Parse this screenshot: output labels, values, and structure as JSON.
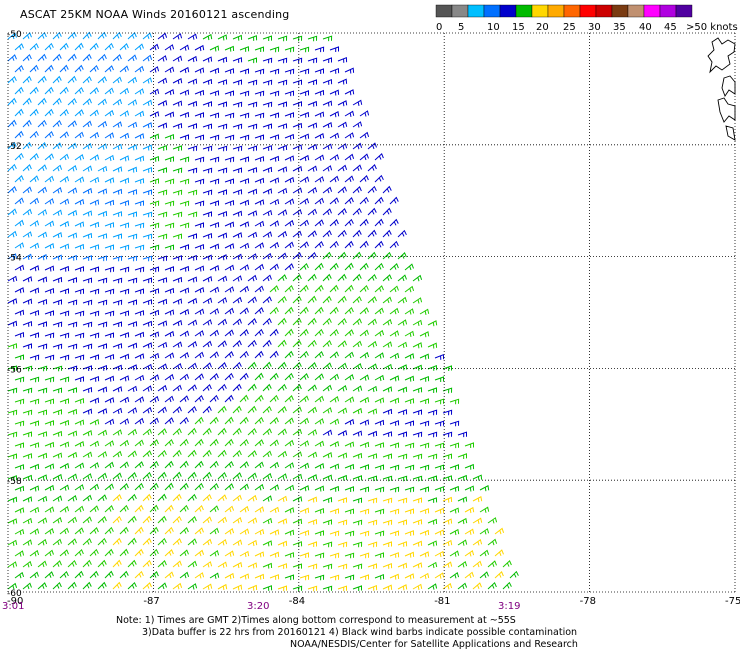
{
  "title": "ASCAT 25KM NOAA Winds 20160121 ascending",
  "colorbar": {
    "colors": [
      "#555555",
      "#888888",
      "#00bfff",
      "#0070ff",
      "#0000cc",
      "#00bb00",
      "#ffd700",
      "#ffaa00",
      "#ff6600",
      "#ff0000",
      "#cc0000",
      "#7a3b12",
      "#c09070",
      "#ff00ff",
      "#b000e0",
      "#5000a0"
    ],
    "tick_labels": [
      "0",
      "5",
      "10",
      "15",
      "20",
      "25",
      "30",
      "35",
      "40",
      "45",
      ">50 knots"
    ]
  },
  "map": {
    "lat_labels": [
      "-50",
      "-52",
      "-54",
      "-56",
      "-58",
      "-60"
    ],
    "lon_labels": [
      "-90",
      "-87",
      "-84",
      "-81",
      "-78",
      "-75"
    ],
    "time_labels": [
      "3:01",
      "3:20",
      "3:19"
    ]
  },
  "notes": {
    "line1": "Note: 1) Times are GMT 2)Times along bottom correspond to measurement at ~55S",
    "line2": "3)Data buffer is 22 hrs from 20160121 4) Black wind barbs indicate possible contamination",
    "line3": "NOAA/NESDIS/Center for Satellite Applications and Research"
  }
}
